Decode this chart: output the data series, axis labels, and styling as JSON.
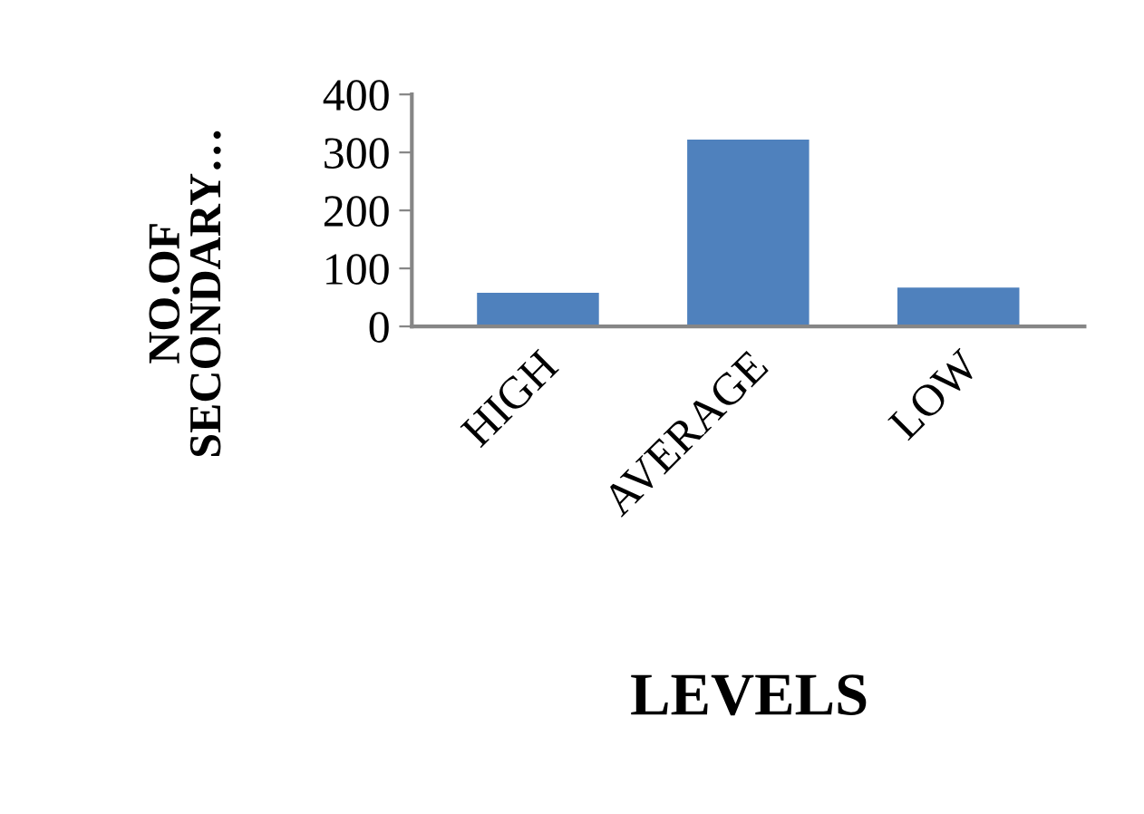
{
  "chart_data": {
    "type": "bar",
    "xlabel": "LEVELS",
    "ylabel": "NO.OF\nSECONDARY…",
    "categories": [
      "HIGH",
      "AVERAGE",
      "LOW"
    ],
    "values": [
      58,
      322,
      67
    ],
    "color": "#4f81bd",
    "ylim": [
      0,
      400
    ],
    "yticks": [
      0,
      100,
      200,
      300,
      400
    ],
    "grid": false,
    "legend": false
  }
}
